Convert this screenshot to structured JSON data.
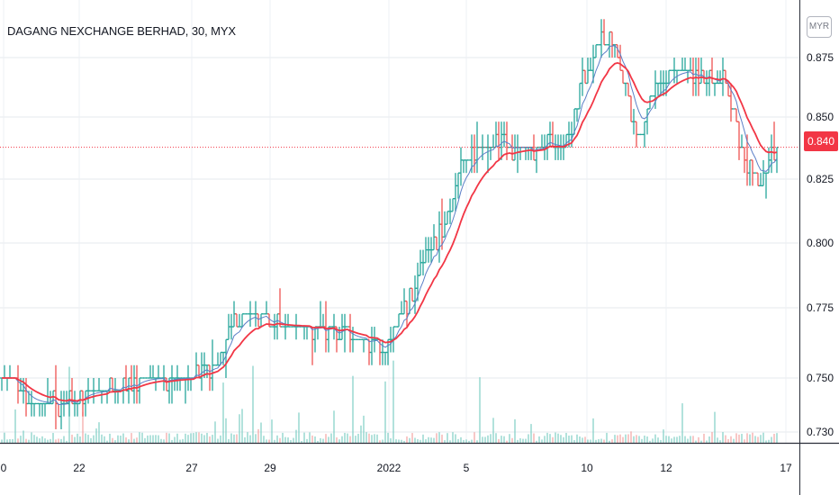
{
  "title": "DAGANG NEXCHANGE BERHAD, 30, MYX",
  "currency_button": "MYR",
  "last_price_label": "0.840",
  "colors": {
    "up": "#26a69a",
    "down": "#ef5350",
    "ema_fast": "#5b7fc7",
    "ema_slow": "#f23645",
    "grid": "#e6e8ee",
    "axis_text": "#131722"
  },
  "chart_data": {
    "type": "ohlc",
    "y_axis": {
      "ticks": [
        "0.875",
        "0.850",
        "0.825",
        "0.800",
        "0.775",
        "0.750",
        "0.730"
      ],
      "ylim": [
        0.7275,
        0.8925
      ]
    },
    "x_axis": {
      "ticks": [
        "0",
        "22",
        "27",
        "29",
        "2022",
        "5",
        "10",
        "12",
        "17"
      ]
    },
    "last_price": 0.84,
    "price_path_keypoints": [
      {
        "bar": 0,
        "price": 0.752
      },
      {
        "bar": 10,
        "price": 0.741
      },
      {
        "bar": 25,
        "price": 0.74
      },
      {
        "bar": 40,
        "price": 0.748
      },
      {
        "bar": 60,
        "price": 0.749
      },
      {
        "bar": 70,
        "price": 0.75
      },
      {
        "bar": 80,
        "price": 0.755
      },
      {
        "bar": 85,
        "price": 0.775
      },
      {
        "bar": 95,
        "price": 0.775
      },
      {
        "bar": 105,
        "price": 0.77
      },
      {
        "bar": 120,
        "price": 0.768
      },
      {
        "bar": 135,
        "price": 0.765
      },
      {
        "bar": 142,
        "price": 0.762
      },
      {
        "bar": 150,
        "price": 0.78
      },
      {
        "bar": 158,
        "price": 0.8
      },
      {
        "bar": 165,
        "price": 0.81
      },
      {
        "bar": 170,
        "price": 0.835
      },
      {
        "bar": 178,
        "price": 0.84
      },
      {
        "bar": 185,
        "price": 0.843
      },
      {
        "bar": 192,
        "price": 0.838
      },
      {
        "bar": 200,
        "price": 0.84
      },
      {
        "bar": 210,
        "price": 0.843
      },
      {
        "bar": 215,
        "price": 0.866
      },
      {
        "bar": 220,
        "price": 0.88
      },
      {
        "bar": 226,
        "price": 0.883
      },
      {
        "bar": 232,
        "price": 0.858
      },
      {
        "bar": 236,
        "price": 0.842
      },
      {
        "bar": 242,
        "price": 0.864
      },
      {
        "bar": 250,
        "price": 0.87
      },
      {
        "bar": 260,
        "price": 0.868
      },
      {
        "bar": 268,
        "price": 0.865
      },
      {
        "bar": 275,
        "price": 0.835
      },
      {
        "bar": 280,
        "price": 0.825
      },
      {
        "bar": 287,
        "price": 0.842
      }
    ]
  }
}
